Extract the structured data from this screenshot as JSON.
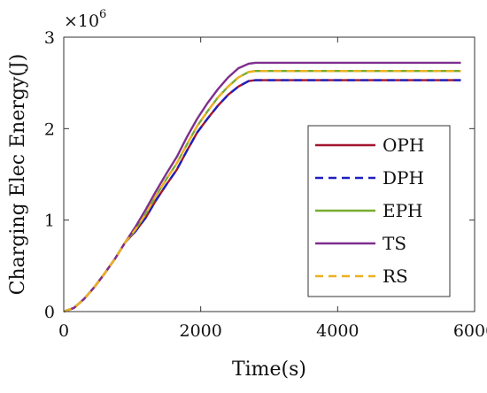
{
  "chart_data": {
    "type": "line",
    "xlabel": "Time(s)",
    "ylabel": "Charging Elec Energy(J)",
    "y_multiplier": "×10",
    "y_multiplier_exponent": "6",
    "xlim": [
      0,
      6000
    ],
    "ylim": [
      0,
      3
    ],
    "xticks": [
      0,
      2000,
      4000,
      6000
    ],
    "yticks": [
      0,
      1,
      2,
      3
    ],
    "grid": false,
    "legend_position": "right",
    "series": [
      {
        "name": "OPH",
        "color": "#a2142f",
        "dashed": false,
        "x": [
          0,
          150,
          300,
          450,
          600,
          750,
          900,
          1050,
          1200,
          1350,
          1500,
          1650,
          1800,
          1950,
          2100,
          2250,
          2400,
          2550,
          2700,
          2800,
          3000,
          4000,
          5000,
          5800
        ],
        "y": [
          0,
          0.04,
          0.14,
          0.27,
          0.42,
          0.58,
          0.76,
          0.88,
          1.03,
          1.22,
          1.39,
          1.55,
          1.76,
          1.96,
          2.11,
          2.25,
          2.37,
          2.46,
          2.52,
          2.53,
          2.53,
          2.53,
          2.53,
          2.53
        ]
      },
      {
        "name": "DPH",
        "color": "#1f1fbf",
        "dashed": true,
        "x": [
          0,
          150,
          300,
          450,
          600,
          750,
          900,
          1050,
          1200,
          1350,
          1500,
          1650,
          1800,
          1950,
          2100,
          2250,
          2400,
          2550,
          2700,
          2800,
          3000,
          4000,
          5000,
          5800
        ],
        "y": [
          0,
          0.04,
          0.14,
          0.27,
          0.42,
          0.58,
          0.76,
          0.88,
          1.03,
          1.22,
          1.39,
          1.55,
          1.76,
          1.96,
          2.11,
          2.25,
          2.37,
          2.46,
          2.52,
          2.53,
          2.53,
          2.53,
          2.53,
          2.53
        ]
      },
      {
        "name": "EPH",
        "color": "#77ac30",
        "dashed": false,
        "x": [
          0,
          150,
          300,
          450,
          600,
          750,
          900,
          1050,
          1200,
          1350,
          1500,
          1650,
          1800,
          1950,
          2100,
          2250,
          2400,
          2550,
          2700,
          2800,
          3000,
          4000,
          5000,
          5800
        ],
        "y": [
          0,
          0.04,
          0.14,
          0.27,
          0.42,
          0.58,
          0.76,
          0.9,
          1.07,
          1.27,
          1.45,
          1.62,
          1.83,
          2.03,
          2.19,
          2.34,
          2.46,
          2.56,
          2.62,
          2.63,
          2.63,
          2.63,
          2.63,
          2.63
        ]
      },
      {
        "name": "TS",
        "color": "#7e2f8e",
        "dashed": false,
        "x": [
          0,
          150,
          300,
          450,
          600,
          750,
          900,
          1050,
          1200,
          1350,
          1500,
          1650,
          1800,
          1950,
          2100,
          2250,
          2400,
          2550,
          2700,
          2800,
          3000,
          4000,
          5000,
          5800
        ],
        "y": [
          0,
          0.04,
          0.14,
          0.27,
          0.42,
          0.58,
          0.76,
          0.93,
          1.12,
          1.32,
          1.51,
          1.69,
          1.91,
          2.11,
          2.28,
          2.43,
          2.56,
          2.66,
          2.71,
          2.72,
          2.72,
          2.72,
          2.72,
          2.72
        ]
      },
      {
        "name": "RS",
        "color": "#edb120",
        "dashed": true,
        "x": [
          0,
          150,
          300,
          450,
          600,
          750,
          900,
          1050,
          1200,
          1350,
          1500,
          1650,
          1800,
          1950,
          2100,
          2250,
          2400,
          2550,
          2700,
          2800,
          3000,
          4000,
          5000,
          5800
        ],
        "y": [
          0,
          0.04,
          0.14,
          0.27,
          0.42,
          0.58,
          0.76,
          0.9,
          1.07,
          1.27,
          1.45,
          1.62,
          1.83,
          2.03,
          2.19,
          2.34,
          2.46,
          2.56,
          2.62,
          2.63,
          2.63,
          2.63,
          2.63,
          2.63
        ]
      }
    ]
  }
}
